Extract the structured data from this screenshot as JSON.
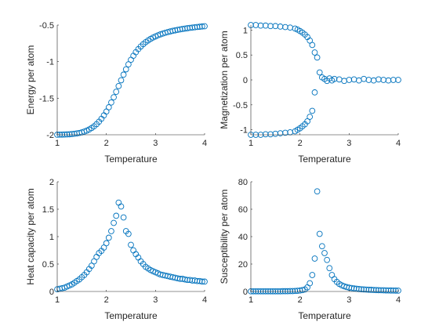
{
  "figure": {
    "marker_color": "#0072bd",
    "axes_color": "#262626",
    "background": "#ffffff"
  },
  "chart_data": [
    {
      "type": "scatter",
      "xlabel": "Temperature",
      "ylabel": "Energy per atom",
      "xlim": [
        1,
        4
      ],
      "ylim": [
        -2,
        -0.5
      ],
      "xticks": [
        1,
        2,
        3,
        4
      ],
      "yticks": [
        -2,
        -1.5,
        -1,
        -0.5
      ],
      "x": [
        1.0,
        1.05,
        1.1,
        1.15,
        1.2,
        1.25,
        1.3,
        1.35,
        1.4,
        1.45,
        1.5,
        1.55,
        1.6,
        1.65,
        1.7,
        1.75,
        1.8,
        1.85,
        1.9,
        1.95,
        2.0,
        2.05,
        2.1,
        2.15,
        2.2,
        2.25,
        2.3,
        2.35,
        2.4,
        2.45,
        2.5,
        2.55,
        2.6,
        2.65,
        2.7,
        2.75,
        2.8,
        2.85,
        2.9,
        2.95,
        3.0,
        3.05,
        3.1,
        3.15,
        3.2,
        3.25,
        3.3,
        3.35,
        3.4,
        3.45,
        3.5,
        3.55,
        3.6,
        3.65,
        3.7,
        3.75,
        3.8,
        3.85,
        3.9,
        3.95,
        4.0
      ],
      "y": [
        -1.999,
        -1.998,
        -1.997,
        -1.996,
        -1.995,
        -1.993,
        -1.99,
        -1.986,
        -1.981,
        -1.975,
        -1.967,
        -1.957,
        -1.944,
        -1.928,
        -1.908,
        -1.884,
        -1.855,
        -1.821,
        -1.781,
        -1.735,
        -1.683,
        -1.624,
        -1.558,
        -1.487,
        -1.412,
        -1.334,
        -1.255,
        -1.178,
        -1.105,
        -1.037,
        -0.975,
        -0.92,
        -0.871,
        -0.829,
        -0.793,
        -0.761,
        -0.734,
        -0.71,
        -0.689,
        -0.671,
        -0.655,
        -0.64,
        -0.627,
        -0.616,
        -0.605,
        -0.596,
        -0.587,
        -0.579,
        -0.572,
        -0.565,
        -0.559,
        -0.553,
        -0.548,
        -0.543,
        -0.538,
        -0.534,
        -0.53,
        -0.526,
        -0.523,
        -0.519,
        -0.516
      ]
    },
    {
      "type": "scatter",
      "xlabel": "Temperature",
      "ylabel": "Magnetization per atom",
      "xlim": [
        1,
        4
      ],
      "ylim": [
        -1.1,
        1.1
      ],
      "xticks": [
        1,
        2,
        3,
        4
      ],
      "yticks": [
        -1,
        -0.5,
        0,
        0.5,
        1
      ],
      "x": [
        1.0,
        1.1,
        1.2,
        1.3,
        1.4,
        1.5,
        1.6,
        1.7,
        1.8,
        1.9,
        1.95,
        2.0,
        2.05,
        2.1,
        2.15,
        2.2,
        2.25,
        2.3,
        2.35,
        2.4,
        2.45,
        2.5,
        2.55,
        2.6,
        2.65,
        2.7,
        2.8,
        2.9,
        3.0,
        3.1,
        3.2,
        3.3,
        3.4,
        3.5,
        3.6,
        3.7,
        3.8,
        3.9,
        4.0,
        1.0,
        1.1,
        1.2,
        1.3,
        1.4,
        1.5,
        1.6,
        1.7,
        1.8,
        1.9,
        1.95,
        2.0,
        2.05,
        2.1,
        2.15,
        2.2,
        2.25,
        2.3
      ],
      "y": [
        1.1,
        1.1,
        1.09,
        1.09,
        1.08,
        1.08,
        1.07,
        1.06,
        1.05,
        1.03,
        1.01,
        0.98,
        0.95,
        0.91,
        0.86,
        0.79,
        0.7,
        0.55,
        0.45,
        0.15,
        0.05,
        0.02,
        -0.02,
        0.03,
        -0.01,
        0.02,
        0.01,
        -0.02,
        0.0,
        0.01,
        -0.01,
        0.02,
        0.0,
        -0.01,
        0.01,
        0.0,
        -0.01,
        0.0,
        0.0,
        -1.1,
        -1.1,
        -1.1,
        -1.09,
        -1.09,
        -1.08,
        -1.07,
        -1.06,
        -1.05,
        -1.03,
        -1.0,
        -0.97,
        -0.93,
        -0.89,
        -0.83,
        -0.74,
        -0.62,
        -0.25
      ]
    },
    {
      "type": "scatter",
      "xlabel": "Temperature",
      "ylabel": "Heat capacity per atom",
      "xlim": [
        1,
        4
      ],
      "ylim": [
        0,
        2
      ],
      "xticks": [
        1,
        2,
        3,
        4
      ],
      "yticks": [
        0,
        0.5,
        1,
        1.5,
        2
      ],
      "x": [
        1.0,
        1.05,
        1.1,
        1.15,
        1.2,
        1.25,
        1.3,
        1.35,
        1.4,
        1.45,
        1.5,
        1.55,
        1.6,
        1.65,
        1.7,
        1.75,
        1.8,
        1.85,
        1.9,
        1.95,
        2.0,
        2.05,
        2.1,
        2.15,
        2.2,
        2.25,
        2.3,
        2.35,
        2.4,
        2.45,
        2.5,
        2.55,
        2.6,
        2.65,
        2.7,
        2.75,
        2.8,
        2.85,
        2.9,
        2.95,
        3.0,
        3.05,
        3.1,
        3.15,
        3.2,
        3.25,
        3.3,
        3.35,
        3.4,
        3.45,
        3.5,
        3.55,
        3.6,
        3.65,
        3.7,
        3.75,
        3.8,
        3.85,
        3.9,
        3.95,
        4.0
      ],
      "y": [
        0.04,
        0.05,
        0.06,
        0.07,
        0.09,
        0.11,
        0.13,
        0.16,
        0.19,
        0.22,
        0.26,
        0.3,
        0.35,
        0.41,
        0.47,
        0.55,
        0.63,
        0.7,
        0.74,
        0.8,
        0.88,
        0.98,
        1.1,
        1.25,
        1.38,
        1.62,
        1.55,
        1.35,
        1.1,
        1.05,
        0.85,
        0.75,
        0.68,
        0.62,
        0.55,
        0.5,
        0.45,
        0.42,
        0.39,
        0.37,
        0.35,
        0.33,
        0.31,
        0.3,
        0.29,
        0.28,
        0.27,
        0.26,
        0.25,
        0.24,
        0.23,
        0.23,
        0.22,
        0.21,
        0.21,
        0.2,
        0.2,
        0.19,
        0.19,
        0.18,
        0.18
      ]
    },
    {
      "type": "scatter",
      "xlabel": "Temperature",
      "ylabel": "Susceptibility per atom",
      "xlim": [
        1,
        4
      ],
      "ylim": [
        0,
        80
      ],
      "xticks": [
        1,
        2,
        3,
        4
      ],
      "yticks": [
        0,
        20,
        40,
        60,
        80
      ],
      "x": [
        1.0,
        1.05,
        1.1,
        1.15,
        1.2,
        1.25,
        1.3,
        1.35,
        1.4,
        1.45,
        1.5,
        1.55,
        1.6,
        1.65,
        1.7,
        1.75,
        1.8,
        1.85,
        1.9,
        1.95,
        2.0,
        2.05,
        2.1,
        2.15,
        2.2,
        2.25,
        2.3,
        2.35,
        2.4,
        2.45,
        2.5,
        2.55,
        2.6,
        2.65,
        2.7,
        2.75,
        2.8,
        2.85,
        2.9,
        2.95,
        3.0,
        3.05,
        3.1,
        3.15,
        3.2,
        3.25,
        3.3,
        3.35,
        3.4,
        3.45,
        3.5,
        3.55,
        3.6,
        3.65,
        3.7,
        3.75,
        3.8,
        3.85,
        3.9,
        3.95,
        4.0
      ],
      "y": [
        0.1,
        0.1,
        0.1,
        0.1,
        0.1,
        0.1,
        0.1,
        0.1,
        0.1,
        0.1,
        0.1,
        0.1,
        0.1,
        0.2,
        0.2,
        0.2,
        0.3,
        0.3,
        0.4,
        0.5,
        0.7,
        1.0,
        1.5,
        3.0,
        6.0,
        12.0,
        24.0,
        73.0,
        42.0,
        33.0,
        28.0,
        23.0,
        17.0,
        12.0,
        9.0,
        7.0,
        5.5,
        4.5,
        3.8,
        3.2,
        2.8,
        2.5,
        2.2,
        2.0,
        1.8,
        1.6,
        1.5,
        1.4,
        1.3,
        1.2,
        1.1,
        1.0,
        0.95,
        0.9,
        0.85,
        0.8,
        0.75,
        0.7,
        0.68,
        0.65,
        0.62
      ]
    }
  ]
}
